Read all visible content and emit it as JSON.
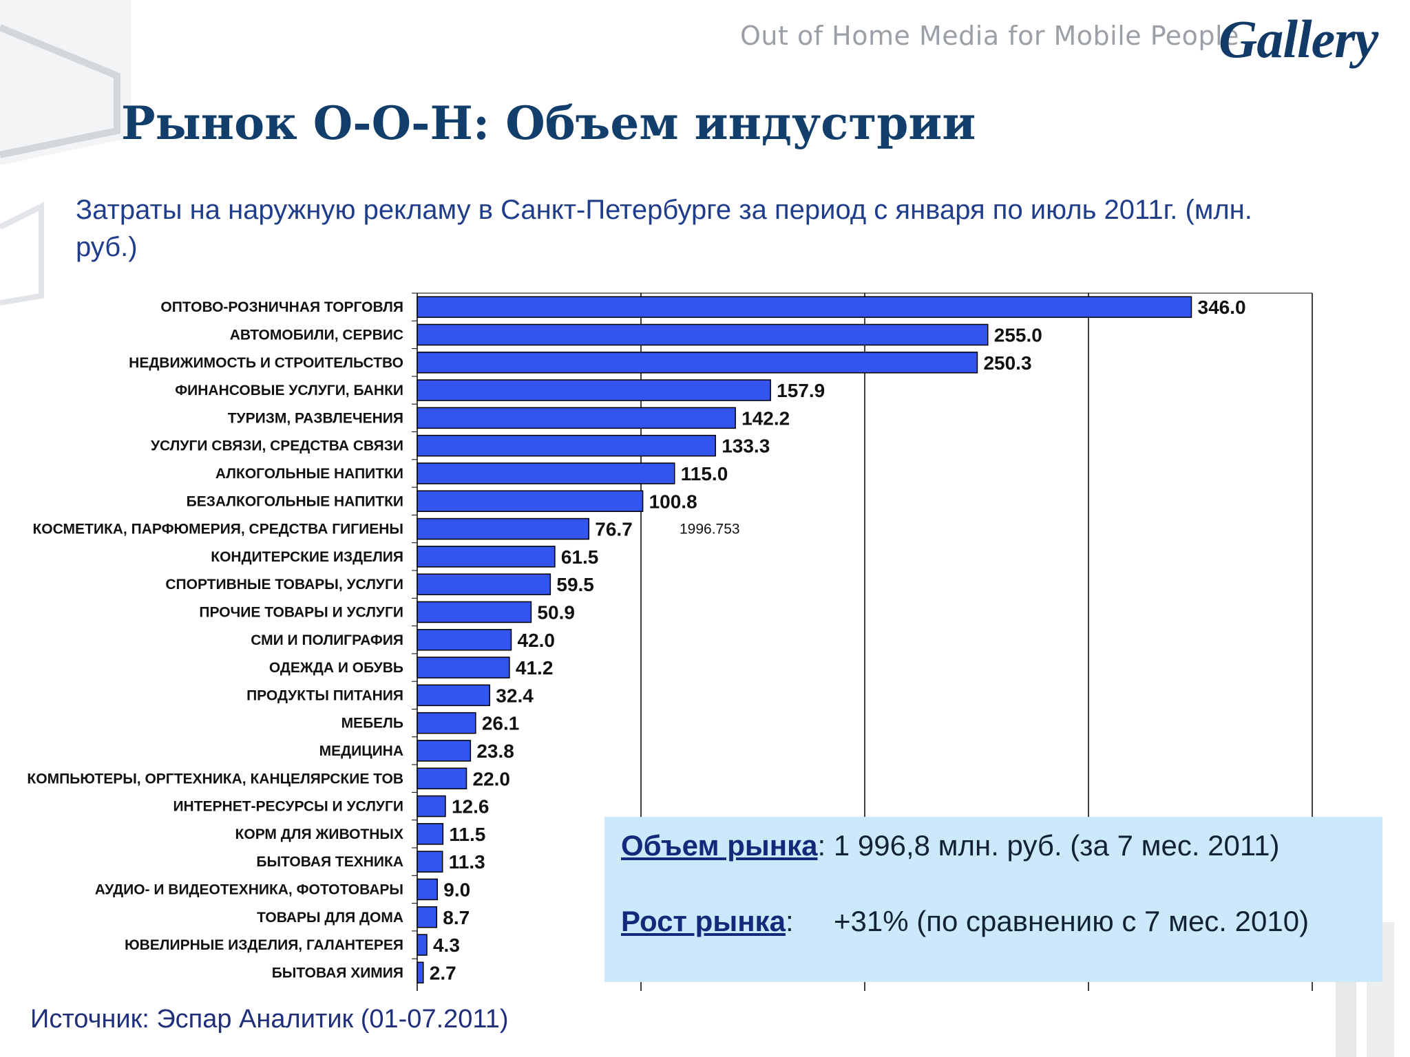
{
  "header": {
    "tagline": "Out of Home Media for Mobile People",
    "logo_text": "Gallery"
  },
  "title": "Рынок О-О-Н: Объем индустрии",
  "subtitle": "Затраты на наружную рекламу в Санкт-Петербурге за период с января по июль 2011г. (млн. руб.)",
  "chart_data": {
    "type": "bar",
    "orientation": "horizontal",
    "xlim": [
      0,
      400
    ],
    "grid": true,
    "bar_color": "#3355ee",
    "categories": [
      "ОПТОВО-РОЗНИЧНАЯ ТОРГОВЛЯ",
      "АВТОМОБИЛИ, СЕРВИС",
      "НЕДВИЖИМОСТЬ И СТРОИТЕЛЬСТВО",
      "ФИНАНСОВЫЕ УСЛУГИ, БАНКИ",
      "ТУРИЗМ, РАЗВЛЕЧЕНИЯ",
      "УСЛУГИ СВЯЗИ, СРЕДСТВА СВЯЗИ",
      "АЛКОГОЛЬНЫЕ НАПИТКИ",
      "БЕЗАЛКОГОЛЬНЫЕ НАПИТКИ",
      "КОСМЕТИКА, ПАРФЮМЕРИЯ, СРЕДСТВА ГИГИЕНЫ",
      "КОНДИТЕРСКИЕ ИЗДЕЛИЯ",
      "СПОРТИВНЫЕ ТОВАРЫ, УСЛУГИ",
      "ПРОЧИЕ ТОВАРЫ И УСЛУГИ",
      "СМИ И ПОЛИГРАФИЯ",
      "ОДЕЖДА И ОБУВЬ",
      "ПРОДУКТЫ ПИТАНИЯ",
      "МЕБЕЛЬ",
      "МЕДИЦИНА",
      "КОМПЬЮТЕРЫ, ОРГТЕХНИКА, КАНЦЕЛЯРСКИЕ ТОВ",
      "ИНТЕРНЕТ-РЕСУРСЫ И УСЛУГИ",
      "КОРМ ДЛЯ ЖИВОТНЫХ",
      "БЫТОВАЯ ТЕХНИКА",
      "АУДИО- И ВИДЕОТЕХНИКА, ФОТОТОВАРЫ",
      "ТОВАРЫ ДЛЯ ДОМА",
      "ЮВЕЛИРНЫЕ ИЗДЕЛИЯ, ГАЛАНТЕРЕЯ",
      "БЫТОВАЯ ХИМИЯ"
    ],
    "values": [
      346.0,
      255.0,
      250.3,
      157.9,
      142.2,
      133.3,
      115.0,
      100.8,
      76.7,
      61.5,
      59.5,
      50.9,
      42.0,
      41.2,
      32.4,
      26.1,
      23.8,
      22.0,
      12.6,
      11.5,
      11.3,
      9.0,
      8.7,
      4.3,
      2.7
    ],
    "value_labels": [
      "346.0",
      "255.0",
      "250.3",
      "157.9",
      "142.2",
      "133.3",
      "115.0",
      "100.8",
      "76.7",
      "61.5",
      "59.5",
      "50.9",
      "42.0",
      "41.2",
      "32.4",
      "26.1",
      "23.8",
      "22.0",
      "12.6",
      "11.5",
      "11.3",
      "9.0",
      "8.7",
      "4.3",
      "2.7"
    ],
    "annotation": "1996.753"
  },
  "info_box": {
    "volume_key": "Объем рынка",
    "volume_text": ": 1 996,8 млн. руб. (за 7 мес. 2011)",
    "growth_key": "Рост  рынка",
    "growth_text": ":     +31% (по сравнению с 7 мес. 2010)"
  },
  "source": "Источник: Эспар Аналитик (01-07.2011)"
}
